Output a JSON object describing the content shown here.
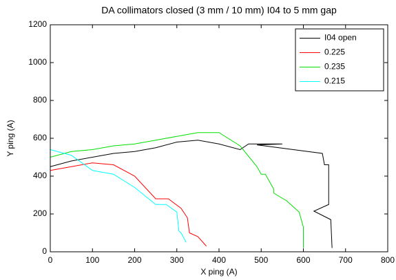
{
  "chart_data": {
    "type": "line",
    "title": "DA collimators closed (3 mm / 10 mm) I04 to 5 mm gap",
    "xlabel": "X ping (A)",
    "ylabel": "Y ping (A)",
    "xlim": [
      0,
      800
    ],
    "ylim": [
      0,
      1200
    ],
    "xticks": [
      0,
      100,
      200,
      300,
      400,
      500,
      600,
      700,
      800
    ],
    "yticks": [
      0,
      200,
      400,
      600,
      800,
      1000,
      1200
    ],
    "grid": false,
    "legend": "northeast",
    "series": [
      {
        "name": "I04 open",
        "color": "#000000",
        "x": [
          0,
          50,
          100,
          150,
          200,
          250,
          300,
          350,
          400,
          450,
          470,
          550,
          490,
          645,
          650,
          660,
          660,
          625,
          665,
          668
        ],
        "values": [
          450,
          480,
          500,
          520,
          530,
          550,
          580,
          590,
          570,
          540,
          570,
          570,
          565,
          520,
          460,
          460,
          250,
          215,
          170,
          20
        ]
      },
      {
        "name": "0.225",
        "color": "#ff0000",
        "x": [
          0,
          50,
          100,
          150,
          200,
          250,
          280,
          310,
          325,
          330,
          350,
          370
        ],
        "values": [
          430,
          450,
          470,
          460,
          400,
          280,
          280,
          230,
          180,
          100,
          80,
          30
        ]
      },
      {
        "name": "0.235",
        "color": "#00e000",
        "x": [
          0,
          50,
          100,
          150,
          200,
          250,
          300,
          350,
          400,
          450,
          490,
          500,
          510,
          530,
          530,
          560,
          590,
          600,
          600
        ],
        "values": [
          500,
          530,
          540,
          560,
          570,
          590,
          610,
          630,
          630,
          560,
          450,
          410,
          410,
          330,
          310,
          270,
          210,
          130,
          20
        ]
      },
      {
        "name": "0.215",
        "color": "#00ffff",
        "x": [
          0,
          50,
          100,
          150,
          200,
          250,
          275,
          300,
          305,
          310,
          322
        ],
        "values": [
          540,
          510,
          430,
          410,
          340,
          250,
          250,
          210,
          110,
          100,
          50
        ]
      }
    ]
  }
}
